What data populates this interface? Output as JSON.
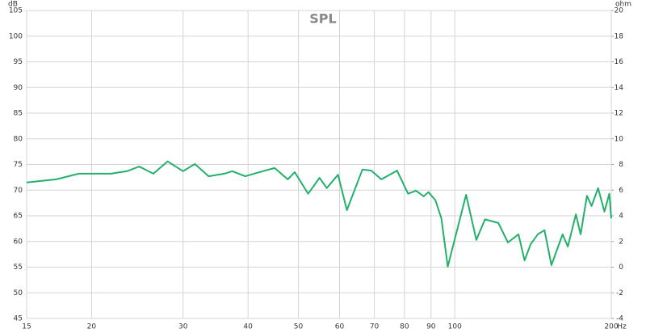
{
  "chart_data": {
    "type": "line",
    "title": "SPL",
    "y_label": "dB",
    "y2_label": "ohm",
    "x_unit": "Hz",
    "log_x": true,
    "grid": true,
    "xlim": [
      15,
      200
    ],
    "xticks": [
      15,
      20,
      30,
      40,
      50,
      60,
      70,
      80,
      90,
      100,
      200
    ],
    "ylim": [
      45,
      105
    ],
    "yticks": [
      45,
      50,
      55,
      60,
      65,
      70,
      75,
      80,
      85,
      90,
      95,
      100,
      105
    ],
    "y2lim": [
      -4,
      20
    ],
    "y2ticks": [
      -4,
      -2,
      0,
      2,
      4,
      6,
      8,
      10,
      12,
      14,
      16,
      18,
      20
    ],
    "series": [
      {
        "color": "#22b06a",
        "x": [
          15,
          17.1,
          18.9,
          21.8,
          23.4,
          24.7,
          26.3,
          28.0,
          30,
          31.6,
          33.6,
          36.0,
          37.3,
          39.5,
          42.7,
          45.0,
          47.7,
          49.2,
          52.2,
          54.9,
          56.7,
          59.6,
          62.0,
          66.4,
          69.1,
          72.2,
          77.4,
          81.3,
          84.2,
          87.1,
          89.0,
          91.8,
          94.2,
          96.9,
          105.1,
          110.0,
          114.3,
          121.3,
          126.5,
          132.6,
          136.2,
          140.0,
          144.4,
          148.8,
          153.4,
          161.2,
          165.0,
          171.0,
          174.6,
          179.6,
          183.3,
          188.7,
          194.0,
          198.3,
          200
        ],
        "values": [
          71.5,
          72.1,
          73.2,
          73.2,
          73.7,
          74.6,
          73.2,
          75.6,
          73.7,
          75.1,
          72.7,
          73.2,
          73.7,
          72.7,
          73.7,
          74.3,
          72.1,
          73.5,
          69.3,
          72.4,
          70.4,
          73.0,
          66.1,
          74.0,
          73.8,
          72.1,
          73.8,
          69.3,
          69.9,
          68.8,
          69.6,
          68.0,
          64.5,
          55.1,
          69.1,
          60.3,
          64.3,
          63.6,
          59.8,
          61.4,
          56.3,
          59.5,
          61.4,
          62.2,
          55.4,
          61.4,
          59.0,
          65.3,
          61.4,
          68.9,
          66.9,
          70.4,
          65.8,
          69.3,
          64.5
        ]
      }
    ]
  }
}
